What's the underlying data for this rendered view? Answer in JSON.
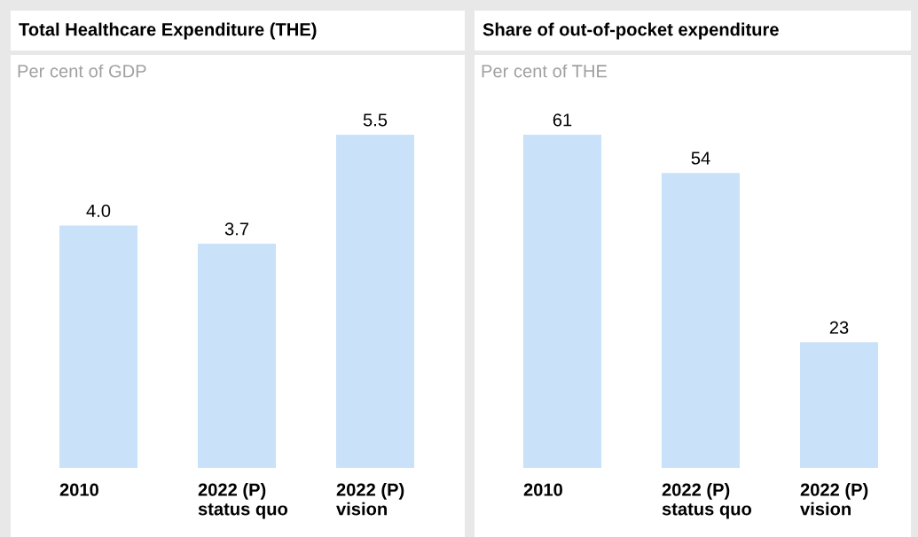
{
  "chart_data": [
    {
      "type": "bar",
      "title": "Total Healthcare Expenditure (THE)",
      "subtitle": "Per cent of GDP",
      "categories": [
        "2010",
        "2022 (P)\nstatus quo",
        "2022 (P)\nvision"
      ],
      "values": [
        4.0,
        3.7,
        5.5
      ],
      "value_labels": [
        "4.0",
        "3.7",
        "5.5"
      ],
      "color": "#c9e1f9"
    },
    {
      "type": "bar",
      "title": "Share of out-of-pocket expenditure",
      "subtitle": "Per cent of THE",
      "categories": [
        "2010",
        "2022 (P)\nstatus quo",
        "2022 (P)\nvision"
      ],
      "values": [
        61,
        54,
        23
      ],
      "data_labels": true,
      "color": "#c9e1f9"
    }
  ]
}
